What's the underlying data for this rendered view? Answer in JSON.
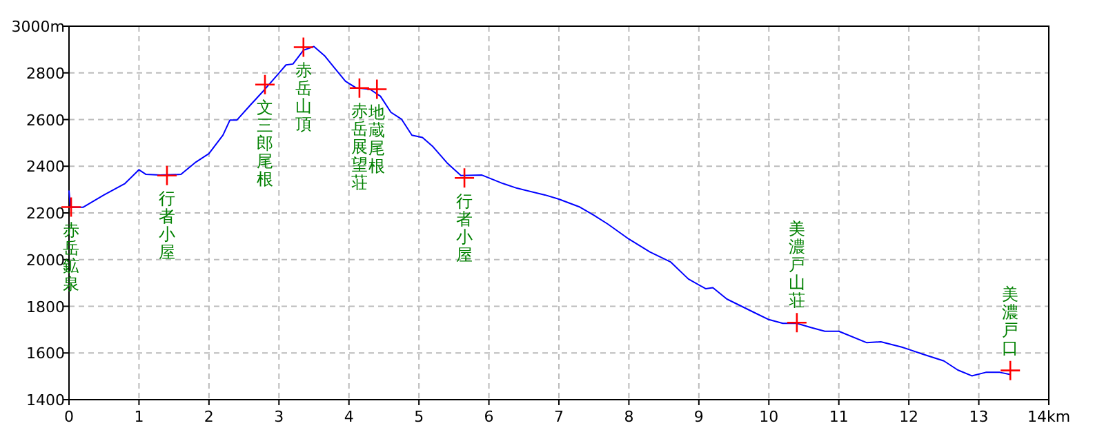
{
  "chart_data": {
    "type": "line",
    "xlim": [
      0,
      14
    ],
    "ylim": [
      1400,
      3000
    ],
    "xticks": [
      0,
      1,
      2,
      3,
      4,
      5,
      6,
      7,
      8,
      9,
      10,
      11,
      12,
      13,
      {
        "value": 14,
        "label": "14km"
      }
    ],
    "yticks": [
      1400,
      1600,
      1800,
      2000,
      2200,
      2400,
      2600,
      2800,
      {
        "value": 3000,
        "label": "3000m"
      }
    ],
    "grid": true,
    "series": [
      {
        "type": "line",
        "color": "#0000ff",
        "marker": "none",
        "x": [
          0,
          0.02,
          0.2,
          0.5,
          0.8,
          1.0,
          1.1,
          1.3,
          1.6,
          1.8,
          2.0,
          2.2,
          2.3,
          2.4,
          2.6,
          2.8,
          3.0,
          3.1,
          3.2,
          3.35,
          3.5,
          3.65,
          3.8,
          3.95,
          4.1,
          4.3,
          4.45,
          4.6,
          4.75,
          4.9,
          5.05,
          5.2,
          5.4,
          5.6,
          5.9,
          6.2,
          6.4,
          6.8,
          7.0,
          7.3,
          7.5,
          7.7,
          8.0,
          8.3,
          8.6,
          8.85,
          9.1,
          9.2,
          9.4,
          9.8,
          10.0,
          10.2,
          10.4,
          10.6,
          10.8,
          11.0,
          11.4,
          11.6,
          11.9,
          12.0,
          12.2,
          12.5,
          12.7,
          12.9,
          13.1,
          13.3,
          13.45
        ],
        "values": [
          2296,
          2224,
          2224,
          2277,
          2326,
          2385,
          2365,
          2362,
          2365,
          2415,
          2454,
          2533,
          2598,
          2598,
          2665,
          2730,
          2799,
          2834,
          2838,
          2897,
          2913,
          2874,
          2819,
          2764,
          2736,
          2730,
          2700,
          2631,
          2602,
          2533,
          2523,
          2484,
          2415,
          2360,
          2362,
          2326,
          2306,
          2277,
          2259,
          2225,
          2190,
          2152,
          2088,
          2033,
          1989,
          1917,
          1875,
          1880,
          1831,
          1772,
          1743,
          1727,
          1727,
          1709,
          1693,
          1693,
          1644,
          1648,
          1625,
          1615,
          1595,
          1566,
          1527,
          1502,
          1517,
          1517,
          1508
        ]
      },
      {
        "type": "scatter",
        "color": "#ff0000",
        "marker": "cross",
        "x": [
          0.03,
          1.4,
          2.8,
          3.35,
          4.15,
          4.4,
          5.65,
          10.4,
          13.45
        ],
        "values": [
          2225,
          2360,
          2750,
          2910,
          2735,
          2730,
          2350,
          1730,
          1525
        ]
      }
    ],
    "annotations": [
      {
        "text": "赤岳鉱泉",
        "x": 0.03,
        "y": 2225
      },
      {
        "text": "行者小屋",
        "x": 1.4,
        "y": 2360
      },
      {
        "text": "文三郎尾根",
        "x": 2.8,
        "y": 2750
      },
      {
        "text": "赤岳山頂",
        "x": 3.35,
        "y": 2910
      },
      {
        "text": "赤岳展望荘",
        "x": 4.15,
        "y": 2735
      },
      {
        "text": "地蔵尾根",
        "x": 4.4,
        "y": 2730
      },
      {
        "text": "行者小屋",
        "x": 5.65,
        "y": 2350
      },
      {
        "text": "美濃戸山荘",
        "x": 10.4,
        "y": 1730
      },
      {
        "text": "美濃戸口",
        "x": 13.45,
        "y": 1525
      }
    ]
  }
}
